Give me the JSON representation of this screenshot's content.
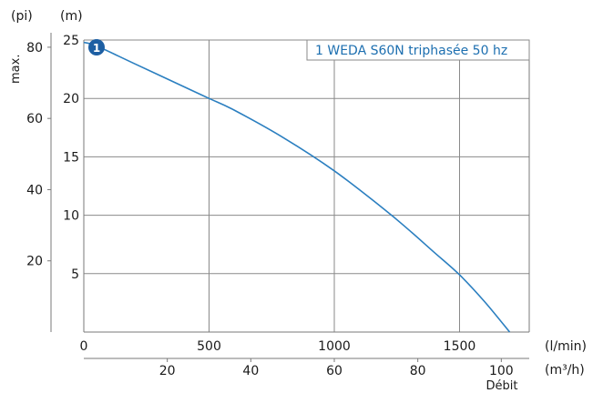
{
  "chart_data": {
    "type": "line",
    "title": "",
    "legend": {
      "label": "1 WEDA S60N triphasée 50 hz",
      "placement": "top-right"
    },
    "marker": {
      "label": "1",
      "color": "#1d5fa3"
    },
    "series": [
      {
        "name": "1 WEDA S60N triphasée 50 hz",
        "color": "#2b7fc0",
        "x": [
          0,
          50,
          200,
          400,
          500,
          600,
          800,
          1000,
          1200,
          1300,
          1400,
          1500,
          1600,
          1700
        ],
        "y": [
          24.8,
          24.5,
          23.0,
          21.0,
          20.0,
          19.0,
          16.6,
          13.8,
          10.5,
          8.7,
          6.8,
          4.9,
          2.6,
          0.0
        ]
      }
    ],
    "x_axis": {
      "unit_label": "(l/min)",
      "range": [
        0,
        1750
      ],
      "ticks": [
        0,
        500,
        1000,
        1500
      ],
      "tick_labels": [
        "0",
        "500",
        "1000",
        "1500"
      ]
    },
    "x_axis_secondary": {
      "unit_label": "(m³/h)",
      "caption": "Débit",
      "ticks": [
        20,
        40,
        60,
        80,
        100
      ],
      "tick_labels": [
        "20",
        "40",
        "60",
        "80",
        "100"
      ]
    },
    "y_axis": {
      "unit_label": "(m)",
      "range": [
        0,
        25
      ],
      "ticks": [
        5,
        10,
        15,
        20,
        25
      ],
      "tick_labels": [
        "5",
        "10",
        "15",
        "20",
        "25"
      ]
    },
    "y_axis_secondary": {
      "unit_label": "(pi)",
      "caption": "max.",
      "ticks": [
        20,
        40,
        60,
        80
      ],
      "tick_labels": [
        "20",
        "40",
        "60",
        "80"
      ]
    },
    "grid": true
  }
}
